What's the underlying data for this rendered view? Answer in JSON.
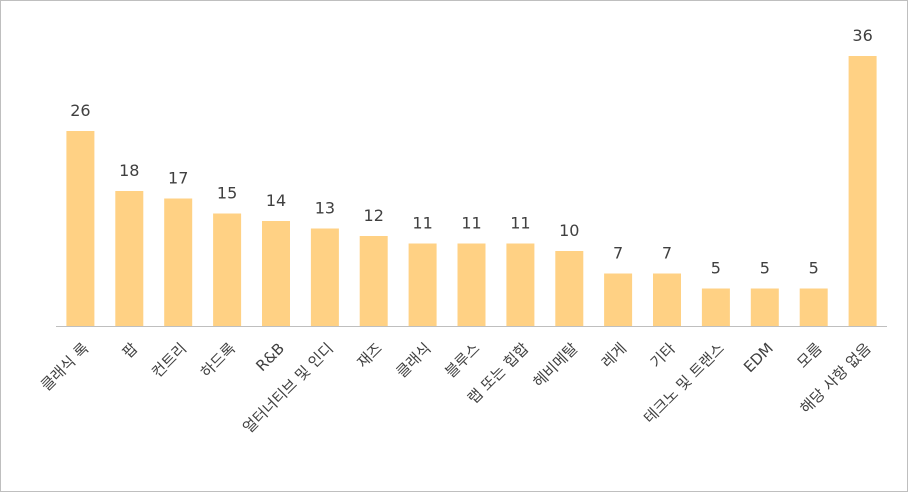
{
  "chart_data": {
    "type": "bar",
    "categories": [
      "클래식 록",
      "팝",
      "컨트리",
      "하드록",
      "R&B",
      "얼터너티브 및 인디",
      "재즈",
      "클래식",
      "블루스",
      "랩 또는 힙합",
      "헤비메탈",
      "레게",
      "기타",
      "테크노 및 트랜스",
      "EDM",
      "모름",
      "해당 사항 없음"
    ],
    "values": [
      26,
      18,
      17,
      15,
      14,
      13,
      12,
      11,
      11,
      11,
      10,
      7,
      7,
      5,
      5,
      5,
      36
    ],
    "title": "",
    "xlabel": "",
    "ylabel": "",
    "ylim": [
      0,
      40
    ],
    "grid": false,
    "legend": "none",
    "bar_color": "#FFD184",
    "axis_color": "#BFBFBF",
    "label_color": "#404040"
  }
}
